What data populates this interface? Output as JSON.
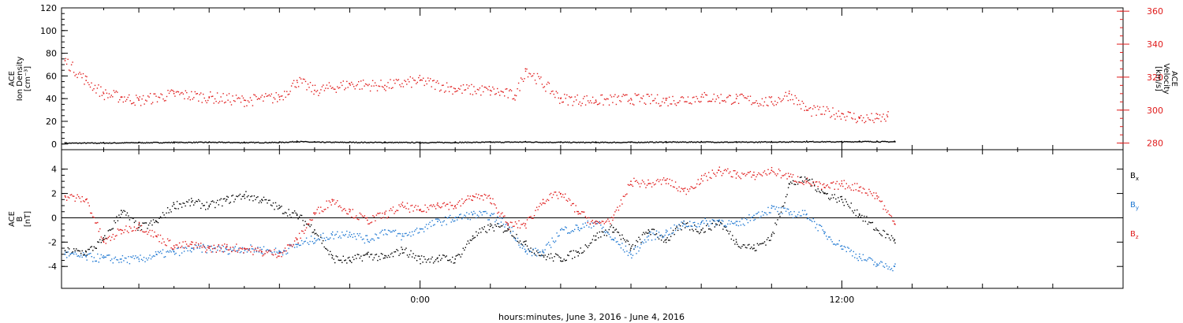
{
  "xlabel": "hours:minutes, June  3, 2016 - June  4, 2016",
  "colors": {
    "black": "#000000",
    "red": "#e01b1b",
    "blue": "#1f78d2",
    "axis": "#000000"
  },
  "chart_data": [
    {
      "type": "scatter",
      "panel": "top",
      "ylabel_lines": [
        "ACE",
        "Ion Density",
        "[cm⁻³]"
      ],
      "ylim": [
        -5,
        120
      ],
      "yticks": [
        0,
        20,
        40,
        60,
        80,
        100,
        120
      ],
      "y2label_lines": [
        "ACE",
        "Velocity",
        "[km/s]"
      ],
      "y2lim": [
        276,
        362
      ],
      "y2ticks": [
        280,
        300,
        320,
        340,
        360
      ],
      "x_ticks": [
        "0:00",
        "12:00"
      ],
      "series": [
        {
          "axis": "left",
          "color_key": "black",
          "x_hours": [
            -10.1,
            -9.0,
            -8.0,
            -7.0,
            -6.0,
            -5.0,
            -4.0,
            -3.5,
            -3.0,
            -2.0,
            -1.0,
            0.0,
            1.0,
            2.0,
            3.0,
            4.0,
            5.0,
            6.0,
            7.0,
            8.0,
            9.0,
            10.0,
            11.0,
            12.0,
            12.5,
            13.0,
            13.5
          ],
          "values": [
            1.2,
            1.3,
            1.6,
            1.8,
            1.9,
            1.7,
            1.8,
            2.6,
            2.0,
            1.9,
            1.8,
            1.7,
            1.8,
            2.0,
            2.2,
            1.9,
            1.8,
            1.9,
            2.1,
            2.2,
            2.0,
            2.2,
            2.5,
            2.3,
            2.6,
            2.5,
            2.4
          ]
        },
        {
          "axis": "right",
          "color_key": "red",
          "x_hours": [
            -10.1,
            -9.5,
            -9.0,
            -8.5,
            -8.0,
            -7.0,
            -6.0,
            -5.0,
            -4.0,
            -3.5,
            -3.0,
            -2.0,
            -1.0,
            0.0,
            1.0,
            2.0,
            2.7,
            3.0,
            4.0,
            5.0,
            6.0,
            7.0,
            8.0,
            9.0,
            10.0,
            10.5,
            11.0,
            12.0,
            12.5,
            13.0,
            13.3
          ],
          "values": [
            330,
            318,
            310,
            308,
            306,
            310,
            308,
            306,
            308,
            318,
            312,
            316,
            315,
            318,
            313,
            312,
            309,
            325,
            307,
            306,
            307,
            306,
            308,
            307,
            305,
            310,
            300,
            298,
            295,
            295,
            296
          ]
        }
      ]
    },
    {
      "type": "scatter",
      "panel": "bottom",
      "ylabel_lines": [
        "ACE",
        "B",
        "[nT]"
      ],
      "ylim": [
        -5.8,
        5.6
      ],
      "yticks": [
        -4,
        -2,
        0,
        2,
        4
      ],
      "x_ticks": [
        "0:00",
        "12:00"
      ],
      "series": [
        {
          "name": "Bx",
          "color_key": "black",
          "x_hours": [
            -10.1,
            -9.5,
            -9.0,
            -8.5,
            -8.0,
            -7.5,
            -7.0,
            -6.5,
            -6.0,
            -5.5,
            -5.0,
            -4.5,
            -4.0,
            -3.5,
            -3.0,
            -2.5,
            -2.0,
            -1.5,
            -1.0,
            -0.5,
            0.0,
            0.5,
            1.0,
            1.5,
            2.0,
            2.5,
            3.0,
            3.5,
            4.0,
            4.5,
            5.0,
            5.5,
            6.0,
            6.5,
            7.0,
            7.5,
            8.0,
            8.5,
            9.0,
            9.5,
            10.0,
            10.5,
            11.0,
            11.5,
            12.0,
            12.5,
            13.0,
            13.5
          ],
          "values": [
            -2.7,
            -2.8,
            -1.8,
            0.6,
            -0.8,
            -0.3,
            1.1,
            1.3,
            1.0,
            1.5,
            1.9,
            1.5,
            0.8,
            0.2,
            -1.0,
            -3.3,
            -3.5,
            -3.0,
            -3.3,
            -2.6,
            -3.4,
            -3.3,
            -3.4,
            -1.5,
            -0.7,
            -0.9,
            -2.2,
            -3.1,
            -3.3,
            -2.8,
            -1.5,
            -0.8,
            -2.5,
            -1.0,
            -1.8,
            -0.5,
            -1.0,
            -0.3,
            -2.0,
            -2.5,
            -1.5,
            2.8,
            3.2,
            2.0,
            1.5,
            0.3,
            -1.0,
            -1.8
          ]
        },
        {
          "name": "By",
          "color_key": "blue",
          "x_hours": [
            -10.1,
            -9.5,
            -9.0,
            -8.5,
            -8.0,
            -7.5,
            -7.0,
            -6.5,
            -6.0,
            -5.5,
            -5.0,
            -4.5,
            -4.0,
            -3.5,
            -3.0,
            -2.5,
            -2.0,
            -1.5,
            -1.0,
            -0.5,
            0.0,
            0.5,
            1.0,
            1.5,
            2.0,
            2.5,
            3.0,
            3.5,
            4.0,
            4.5,
            5.0,
            5.5,
            6.0,
            6.5,
            7.0,
            7.5,
            8.0,
            8.5,
            9.0,
            9.5,
            10.0,
            10.5,
            11.0,
            11.5,
            12.0,
            12.5,
            13.0,
            13.5
          ],
          "values": [
            -3.0,
            -3.2,
            -3.3,
            -3.4,
            -3.4,
            -3.0,
            -2.8,
            -2.5,
            -2.5,
            -2.6,
            -2.5,
            -2.6,
            -2.8,
            -2.2,
            -1.7,
            -1.4,
            -1.2,
            -1.8,
            -1.0,
            -1.5,
            -0.9,
            -0.3,
            0.0,
            0.3,
            0.2,
            -0.6,
            -2.8,
            -2.8,
            -1.0,
            -0.8,
            -0.3,
            -1.8,
            -3.0,
            -1.5,
            -1.2,
            -0.5,
            -0.4,
            -0.2,
            -0.6,
            0.2,
            0.8,
            0.4,
            0.3,
            -1.3,
            -2.3,
            -3.2,
            -3.8,
            -4.0
          ]
        },
        {
          "name": "Bz",
          "color_key": "red",
          "x_hours": [
            -10.1,
            -9.5,
            -9.0,
            -8.5,
            -8.0,
            -7.5,
            -7.0,
            -6.5,
            -6.0,
            -5.5,
            -5.0,
            -4.5,
            -4.0,
            -3.5,
            -3.0,
            -2.5,
            -2.0,
            -1.5,
            -1.0,
            -0.5,
            0.0,
            0.5,
            1.0,
            1.5,
            2.0,
            2.5,
            3.0,
            3.5,
            4.0,
            4.5,
            5.0,
            5.5,
            6.0,
            6.5,
            7.0,
            7.5,
            8.0,
            8.5,
            9.0,
            9.5,
            10.0,
            10.5,
            11.0,
            11.5,
            12.0,
            12.5,
            13.0,
            13.5
          ],
          "values": [
            1.8,
            1.5,
            -2.0,
            -1.0,
            -0.6,
            -1.5,
            -2.3,
            -2.2,
            -2.5,
            -2.4,
            -2.5,
            -2.8,
            -2.9,
            -1.8,
            0.4,
            1.5,
            0.5,
            -0.2,
            0.3,
            1.0,
            0.6,
            1.2,
            1.0,
            1.8,
            1.6,
            -0.6,
            -0.5,
            1.5,
            2.0,
            0.5,
            -0.5,
            0.0,
            3.0,
            2.8,
            3.1,
            2.2,
            3.2,
            3.9,
            3.6,
            3.5,
            3.9,
            3.4,
            3.0,
            2.5,
            2.8,
            2.5,
            1.8,
            -0.5
          ]
        }
      ],
      "legend": [
        {
          "label": "B",
          "sub": "x",
          "color_key": "black"
        },
        {
          "label": "B",
          "sub": "y",
          "color_key": "blue"
        },
        {
          "label": "B",
          "sub": "z",
          "color_key": "red"
        }
      ]
    }
  ]
}
